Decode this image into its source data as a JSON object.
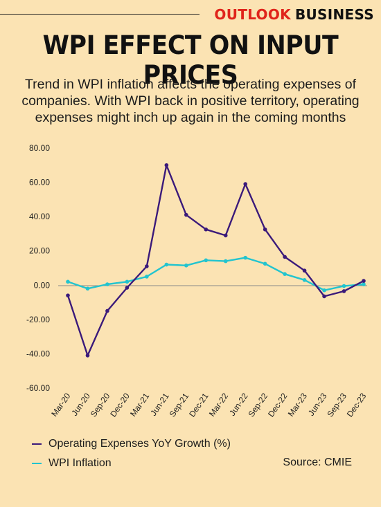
{
  "brand": {
    "part1": "OUTLOOK",
    "part2": "BUSINESS"
  },
  "title": "WPI EFFECT ON INPUT PRICES",
  "subtitle": "Trend in WPI inflation affects the operating expenses of companies. With WPI back in positive territory, operating expenses might inch up again in the coming months",
  "source": "Source: CMIE",
  "colors": {
    "expenses": "#3b1a7a",
    "wpi": "#22c4cf",
    "background": "#fbe3b3"
  },
  "chart_data": {
    "type": "line",
    "categories": [
      "Mar-20",
      "Jun-20",
      "Sep-20",
      "Dec-20",
      "Mar-21",
      "Jun-21",
      "Sep-21",
      "Dec-21",
      "Mar-22",
      "Jun-22",
      "Sep-22",
      "Dec-22",
      "Mar-23",
      "Jun-23",
      "Sep-23",
      "Dec-23"
    ],
    "y_ticks": [
      "80.00",
      "60.00",
      "40.00",
      "20.00",
      "0.00",
      "-20.00",
      "-40.00",
      "-60.00"
    ],
    "ylim": [
      -60,
      80
    ],
    "grid": false,
    "legend_position": "bottom-left",
    "series": [
      {
        "name": "Operating Expenses YoY Growth (%)",
        "values": [
          -6,
          -41,
          -15,
          -1.5,
          11,
          70,
          41,
          32.5,
          29,
          59,
          32.5,
          16.5,
          8.5,
          -6.5,
          -3.5,
          2.5
        ]
      },
      {
        "name": "WPI Inflation",
        "values": [
          2,
          -2,
          0.5,
          2,
          5,
          12,
          11.5,
          14.5,
          14,
          16,
          12.5,
          6.5,
          3,
          -3,
          -0.5,
          0.5
        ]
      }
    ]
  }
}
